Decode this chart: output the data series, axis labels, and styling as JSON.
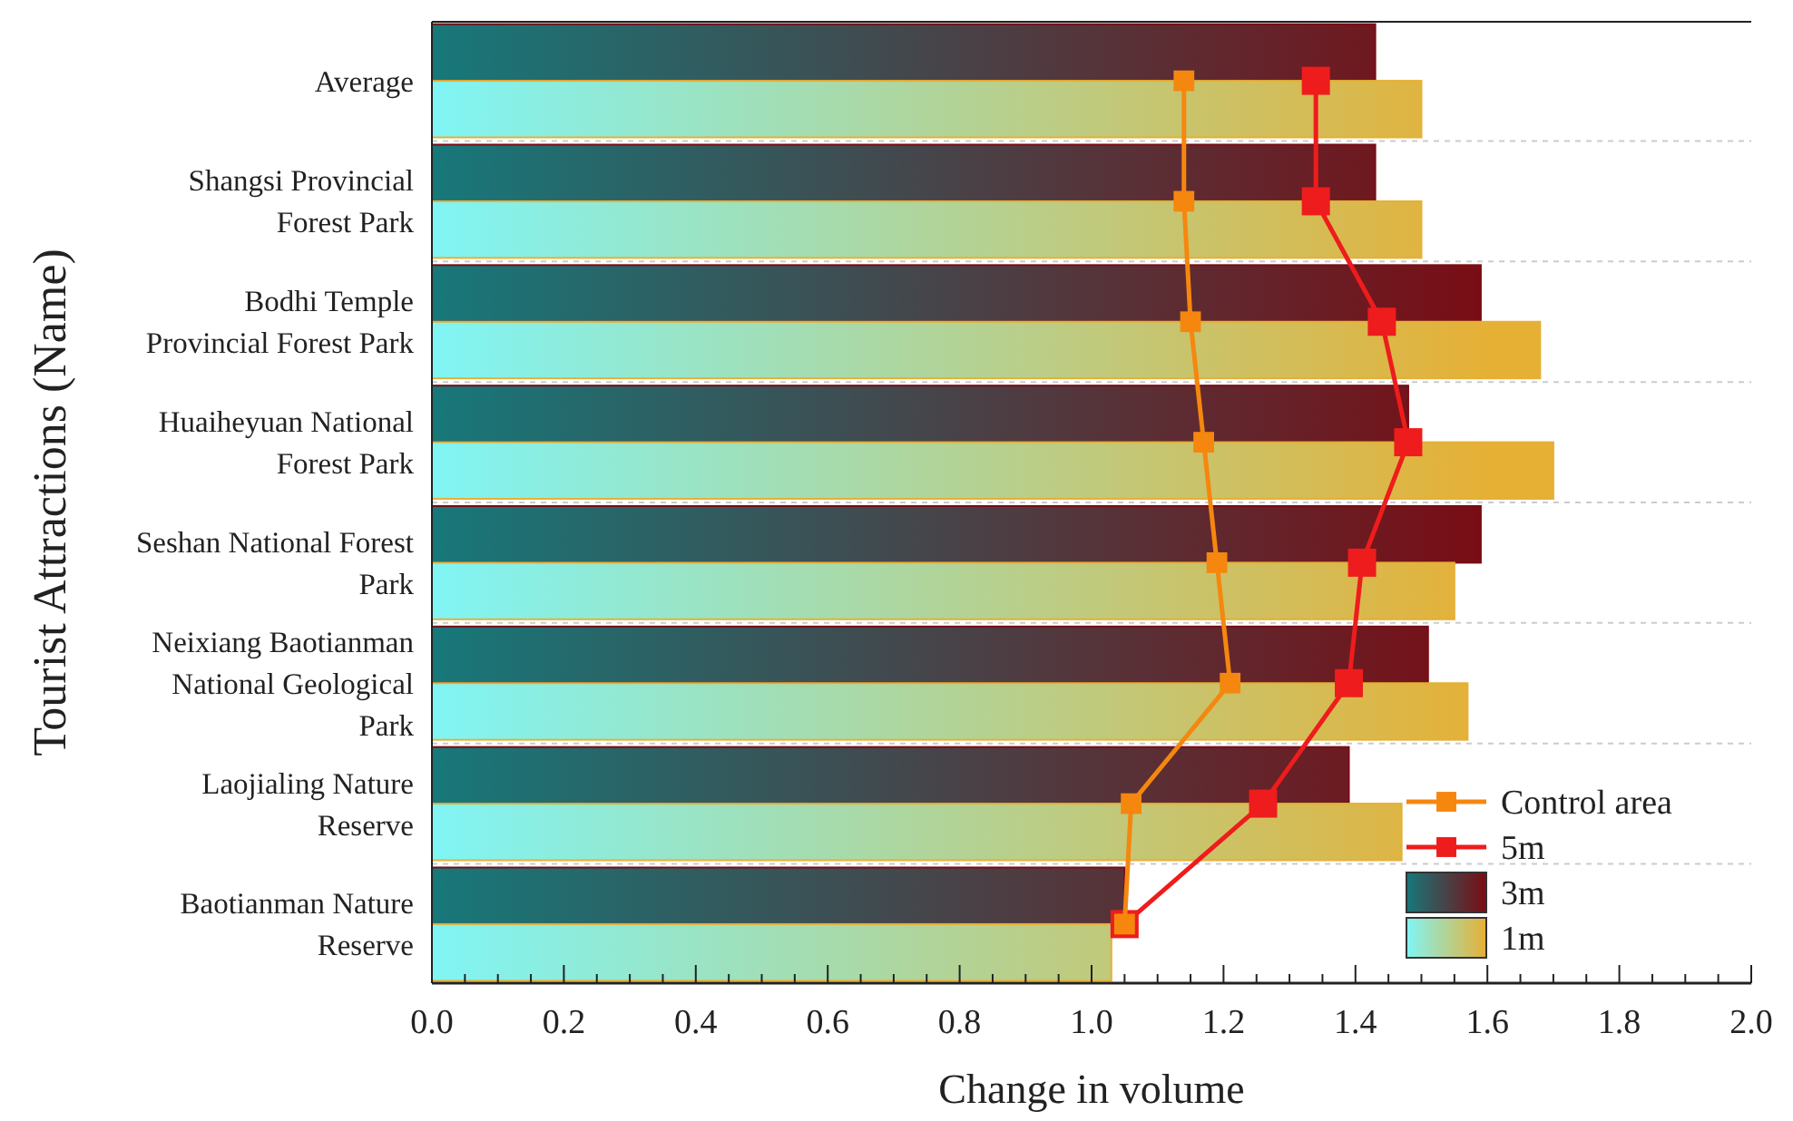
{
  "chart_data": {
    "type": "bar",
    "orientation": "horizontal",
    "xlabel": "Change in volume",
    "ylabel": "Tourist Attractions (Name)",
    "categories": [
      "Average",
      "Shangsi Provincial Forest Park",
      "Bodhi Temple Provincial Forest Park",
      "Huaiheyuan National Forest Park",
      "Seshan National Forest Park",
      "Neixiang Baotianman National Geological Park",
      "Laojialing Nature Reserve",
      "Baotianman Nature Reserve"
    ],
    "series": [
      {
        "name": "3m",
        "type": "bar",
        "color": "#7a0c14",
        "values": [
          1.43,
          1.43,
          1.59,
          1.48,
          1.59,
          1.51,
          1.39,
          1.05
        ]
      },
      {
        "name": "1m",
        "type": "bar",
        "color": "#e6b035",
        "values": [
          1.5,
          1.5,
          1.68,
          1.7,
          1.55,
          1.57,
          1.47,
          1.03
        ]
      },
      {
        "name": "5m",
        "type": "line",
        "color": "#ee1c1c",
        "marker": "square",
        "values": [
          1.34,
          1.34,
          1.44,
          1.48,
          1.41,
          1.39,
          1.26,
          1.05
        ]
      },
      {
        "name": "Control area",
        "type": "line",
        "color": "#f5870f",
        "marker": "square",
        "values": [
          1.14,
          1.14,
          1.15,
          1.17,
          1.19,
          1.21,
          1.06,
          1.05
        ]
      }
    ],
    "xlim": [
      0,
      2
    ],
    "xticks": [
      {
        "value": 0,
        "label": "0.0"
      },
      {
        "value": 0.05,
        "label": null
      },
      {
        "value": 0.1,
        "label": null
      },
      {
        "value": 0.15,
        "label": null
      },
      {
        "value": 0.2,
        "label": "0.2"
      },
      {
        "value": 0.25,
        "label": null
      },
      {
        "value": 0.3,
        "label": null
      },
      {
        "value": 0.35,
        "label": null
      },
      {
        "value": 0.4,
        "label": "0.4"
      },
      {
        "value": 0.45,
        "label": null
      },
      {
        "value": 0.5,
        "label": null
      },
      {
        "value": 0.55,
        "label": null
      },
      {
        "value": 0.6,
        "label": "0.6"
      },
      {
        "value": 0.65,
        "label": null
      },
      {
        "value": 0.7,
        "label": null
      },
      {
        "value": 0.75,
        "label": null
      },
      {
        "value": 0.8,
        "label": "0.8"
      },
      {
        "value": 0.85,
        "label": null
      },
      {
        "value": 0.9,
        "label": null
      },
      {
        "value": 0.95,
        "label": null
      },
      {
        "value": 1,
        "label": "1.0"
      },
      {
        "value": 1.05,
        "label": null
      },
      {
        "value": 1.1,
        "label": null
      },
      {
        "value": 1.15,
        "label": null
      },
      {
        "value": 1.2,
        "label": "1.2"
      },
      {
        "value": 1.25,
        "label": null
      },
      {
        "value": 1.3,
        "label": null
      },
      {
        "value": 1.35,
        "label": null
      },
      {
        "value": 1.4,
        "label": "1.4"
      },
      {
        "value": 1.45,
        "label": null
      },
      {
        "value": 1.5,
        "label": null
      },
      {
        "value": 1.55,
        "label": null
      },
      {
        "value": 1.6,
        "label": "1.6"
      },
      {
        "value": 1.65,
        "label": null
      },
      {
        "value": 1.7,
        "label": null
      },
      {
        "value": 1.75,
        "label": null
      },
      {
        "value": 1.8,
        "label": "1.8"
      },
      {
        "value": 1.85,
        "label": null
      },
      {
        "value": 1.9,
        "label": null
      },
      {
        "value": 1.95,
        "label": null
      },
      {
        "value": 2,
        "label": "2.0"
      }
    ],
    "legend": "bottom right",
    "grid": false
  }
}
